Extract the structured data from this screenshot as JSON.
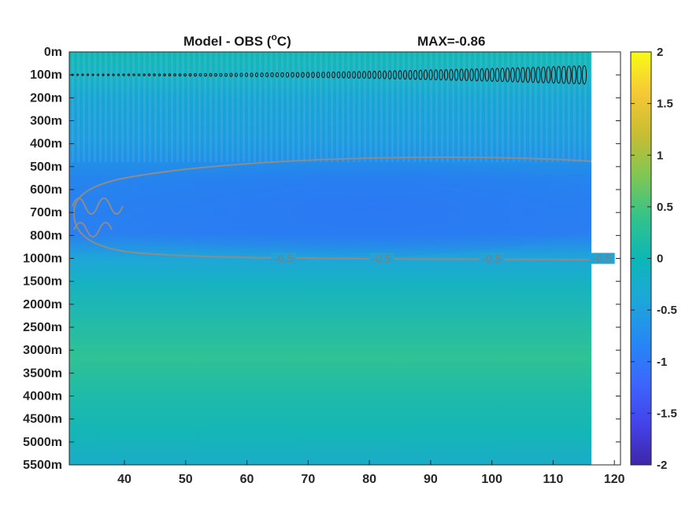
{
  "chart_data": {
    "type": "heatmap",
    "title_left": "Model - OBS (",
    "title_unit_sup": "o",
    "title_unit_tail": "C)",
    "title_right": "MAX=-0.86",
    "xlabel": "",
    "ylabel": "",
    "x_ticks": [
      "40",
      "50",
      "60",
      "70",
      "80",
      "90",
      "100",
      "110",
      "120"
    ],
    "x_tick_values": [
      40,
      50,
      60,
      70,
      80,
      90,
      100,
      110,
      120
    ],
    "xlim": [
      31,
      121
    ],
    "y_ticks": [
      "0m",
      "100m",
      "200m",
      "300m",
      "400m",
      "500m",
      "600m",
      "700m",
      "800m",
      "1000m",
      "1500m",
      "2000m",
      "2500m",
      "3000m",
      "3500m",
      "4000m",
      "4500m",
      "5000m",
      "5500m"
    ],
    "colorbar": {
      "ticks": [
        "2",
        "1.5",
        "1",
        "0.5",
        "0",
        "-0.5",
        "-1",
        "-1.5",
        "-2"
      ],
      "tick_values": [
        2,
        1.5,
        1,
        0.5,
        0,
        -0.5,
        -1,
        -1.5,
        -2
      ],
      "range": [
        -2,
        2
      ],
      "colormap": "parula"
    },
    "contour_labels": [
      "-0.5",
      "-0.5",
      "-0.5",
      "-0.5"
    ],
    "contour_label_x": [
      66,
      82,
      100,
      118
    ],
    "contour_level": -0.5,
    "contour_level_depth": "1000m",
    "field_profile": [
      {
        "depth": "0m",
        "value": 0.0
      },
      {
        "depth": "100m",
        "value": 0.05
      },
      {
        "depth": "200m",
        "value": -0.1
      },
      {
        "depth": "300m",
        "value": -0.2
      },
      {
        "depth": "400m",
        "value": -0.35
      },
      {
        "depth": "500m",
        "value": -0.55
      },
      {
        "depth": "600m",
        "value": -0.75
      },
      {
        "depth": "700m",
        "value": -0.86
      },
      {
        "depth": "800m",
        "value": -0.8
      },
      {
        "depth": "1000m",
        "value": -0.5
      },
      {
        "depth": "1500m",
        "value": -0.15
      },
      {
        "depth": "2000m",
        "value": -0.05
      },
      {
        "depth": "2500m",
        "value": 0.1
      },
      {
        "depth": "3000m",
        "value": 0.12
      },
      {
        "depth": "3500m",
        "value": 0.05
      },
      {
        "depth": "4000m",
        "value": 0.0
      },
      {
        "depth": "4500m",
        "value": -0.05
      },
      {
        "depth": "5000m",
        "value": -0.08
      },
      {
        "depth": "5500m",
        "value": -0.12
      }
    ],
    "grid": false
  }
}
